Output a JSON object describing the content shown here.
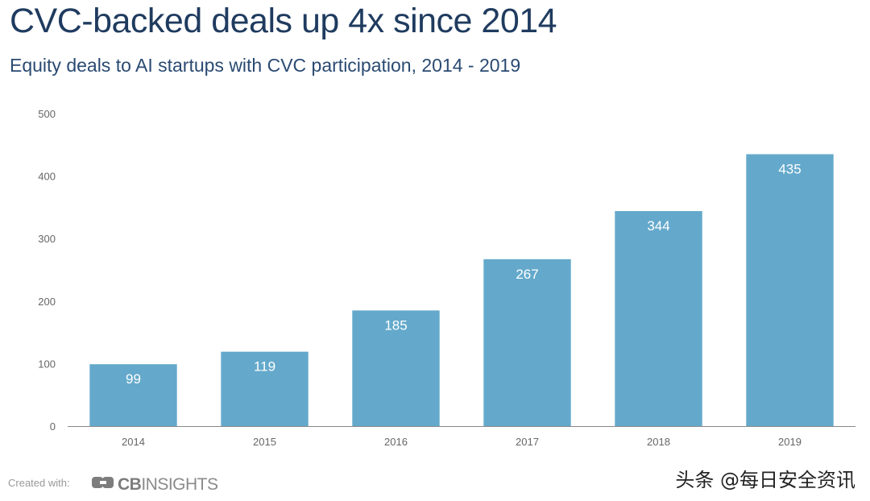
{
  "header": {
    "title": "CVC-backed deals up 4x since 2014",
    "subtitle": "Equity deals to AI startups with CVC participation, 2014 - 2019"
  },
  "chart_data": {
    "type": "bar",
    "title": "CVC-backed deals up 4x since 2014",
    "subtitle": "Equity deals to AI startups with CVC participation, 2014 - 2019",
    "categories": [
      "2014",
      "2015",
      "2016",
      "2017",
      "2018",
      "2019"
    ],
    "values": [
      99,
      119,
      185,
      267,
      344,
      435
    ],
    "xlabel": "",
    "ylabel": "",
    "ylim": [
      0,
      500
    ],
    "yticks": [
      0,
      100,
      200,
      300,
      400,
      500
    ],
    "bar_color": "#64a9cb",
    "label_color": "#ffffff",
    "grid": false,
    "legend": "none"
  },
  "footer": {
    "created_with": "Created with:",
    "brand_bold": "CB",
    "brand_rest": "INSIGHTS",
    "watermark": "头条 @每日安全资讯"
  },
  "colors": {
    "title": "#1f3b5f",
    "subtitle": "#2a4a72",
    "bar": "#64a9cb",
    "axis": "#888888",
    "tick_text": "#666666"
  }
}
